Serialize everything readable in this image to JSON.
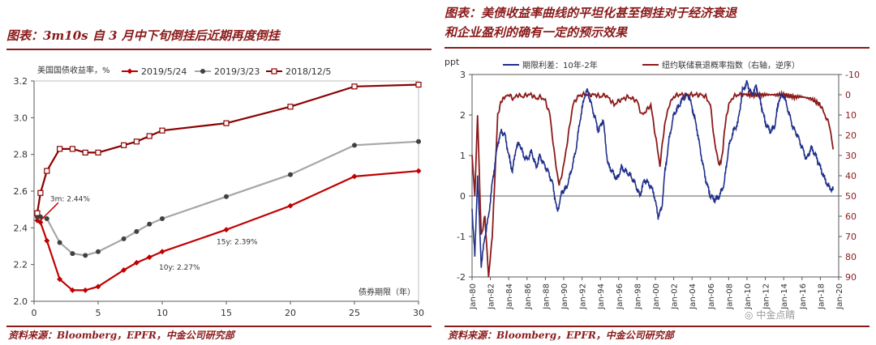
{
  "left": {
    "title": "图表：3m10s 自 3 月中下旬倒挂后近期再度倒挂",
    "source": "资料来源：Bloomberg，EPFR，中金公司研究部"
  },
  "right": {
    "title_line1": "图表：美债收益率曲线的平坦化甚至倒挂对于经济衰退",
    "title_line2": "和企业盈利的确有一定的预示效果",
    "source": "资料来源：Bloomberg，EPFR，中金公司研究部"
  },
  "watermark": "中金点睛",
  "chart_data": [
    {
      "type": "line",
      "ylabel": "美国国债收益率，%",
      "xlabel": "债券期限（年）",
      "ylim": [
        2.0,
        3.2
      ],
      "xlim": [
        0,
        30
      ],
      "yticks": [
        "2.0",
        "2.2",
        "2.4",
        "2.6",
        "2.8",
        "3.0",
        "3.2"
      ],
      "xticks": [
        "0",
        "5",
        "10",
        "15",
        "20",
        "25",
        "30"
      ],
      "x": [
        0.25,
        0.5,
        1,
        2,
        3,
        4,
        5,
        7,
        8,
        9,
        10,
        15,
        20,
        25,
        30
      ],
      "legend_position": "top",
      "series": [
        {
          "name": "2019/5/24",
          "color": "#c00000",
          "marker": "diamond",
          "values": [
            2.44,
            2.43,
            2.33,
            2.12,
            2.06,
            2.06,
            2.08,
            2.17,
            2.21,
            2.24,
            2.27,
            2.39,
            2.52,
            2.68,
            2.71
          ]
        },
        {
          "name": "2019/3/23",
          "color": "#a6a6a6",
          "marker": "circle",
          "values": [
            2.46,
            2.46,
            2.45,
            2.32,
            2.26,
            2.25,
            2.27,
            2.34,
            2.38,
            2.42,
            2.45,
            2.57,
            2.69,
            2.85,
            2.87
          ]
        },
        {
          "name": "2018/12/5",
          "color": "#8b0000",
          "marker": "square",
          "values": [
            2.48,
            2.59,
            2.71,
            2.83,
            2.83,
            2.81,
            2.81,
            2.85,
            2.87,
            2.9,
            2.93,
            2.97,
            3.06,
            3.17,
            3.18
          ]
        }
      ],
      "annotations": [
        {
          "text": "3m: 2.44%",
          "x": 0.25,
          "y": 2.44
        },
        {
          "text": "10y: 2.27%",
          "x": 10,
          "y": 2.27
        },
        {
          "text": "15y: 2.39%",
          "x": 15,
          "y": 2.39
        }
      ]
    },
    {
      "type": "line",
      "ylabel_left": "ppt",
      "xlabel": "",
      "ylim_left": [
        -2,
        3
      ],
      "ylim_right_reversed": [
        90,
        -10
      ],
      "yticks_left": [
        "-2",
        "-1",
        "0",
        "1",
        "2",
        "3"
      ],
      "yticks_right": [
        "-10",
        "0",
        "10",
        "20",
        "30",
        "40",
        "50",
        "60",
        "70",
        "80",
        "90"
      ],
      "xticks": [
        "Jan-80",
        "Jan-82",
        "Jan-84",
        "Jan-86",
        "Jan-88",
        "Jan-90",
        "Jan-92",
        "Jan-94",
        "Jan-96",
        "Jan-98",
        "Jan-00",
        "Jan-02",
        "Jan-04",
        "Jan-06",
        "Jan-08",
        "Jan-10",
        "Jan-12",
        "Jan-14",
        "Jan-16",
        "Jan-18",
        "Jan-20"
      ],
      "legend_position": "top",
      "series": [
        {
          "name": "期限利差：10年-2年",
          "axis": "left",
          "color": "#1f2f8a",
          "x": [
            1980.0,
            1980.3,
            1980.6,
            1981.0,
            1981.4,
            1981.8,
            1982.2,
            1982.5,
            1982.8,
            1983.2,
            1983.6,
            1984.0,
            1984.4,
            1984.8,
            1985.2,
            1985.6,
            1986.0,
            1986.5,
            1987.0,
            1987.4,
            1987.8,
            1988.3,
            1988.8,
            1989.3,
            1989.8,
            1990.3,
            1990.8,
            1991.3,
            1991.8,
            1992.3,
            1992.6,
            1993.2,
            1993.8,
            1994.3,
            1994.8,
            1995.3,
            1995.8,
            1996.3,
            1996.8,
            1997.3,
            1997.8,
            1998.3,
            1998.8,
            1999.3,
            1999.8,
            2000.3,
            2000.7,
            2001.0,
            2001.5,
            2002.0,
            2002.5,
            2003.0,
            2003.6,
            2004.0,
            2004.5,
            2005.0,
            2005.5,
            2006.0,
            2006.5,
            2007.0,
            2007.5,
            2008.0,
            2008.5,
            2009.0,
            2009.5,
            2010.0,
            2010.5,
            2011.0,
            2011.5,
            2012.0,
            2012.5,
            2013.0,
            2013.5,
            2014.0,
            2014.5,
            2015.0,
            2015.5,
            2016.0,
            2016.5,
            2017.0,
            2017.5,
            2018.0,
            2018.5,
            2019.0,
            2019.4
          ],
          "values": [
            -0.3,
            -1.5,
            0.5,
            -1.7,
            -1.0,
            -0.5,
            0.3,
            0.8,
            1.3,
            1.6,
            1.5,
            1.0,
            0.6,
            1.2,
            1.3,
            1.0,
            0.9,
            1.1,
            0.7,
            1.0,
            0.8,
            0.6,
            0.3,
            -0.4,
            0.1,
            0.2,
            0.6,
            1.1,
            1.9,
            2.5,
            2.6,
            2.1,
            1.6,
            1.9,
            0.8,
            0.6,
            0.4,
            0.7,
            0.6,
            0.5,
            0.3,
            0.0,
            0.4,
            0.3,
            0.1,
            -0.5,
            -0.3,
            0.5,
            1.4,
            2.0,
            2.2,
            2.4,
            2.5,
            2.2,
            1.7,
            1.0,
            0.4,
            0.0,
            -0.1,
            0.0,
            0.3,
            1.2,
            1.6,
            1.8,
            2.6,
            2.8,
            2.5,
            2.7,
            2.3,
            1.8,
            1.6,
            1.7,
            2.4,
            2.5,
            2.1,
            1.7,
            1.5,
            1.2,
            0.9,
            1.2,
            1.0,
            0.7,
            0.4,
            0.2,
            0.15
          ]
        },
        {
          "name": "纽约联储衰退概率指数（右轴，逆序）",
          "axis": "right",
          "color": "#8b1a1a",
          "x": [
            1980.0,
            1980.3,
            1980.6,
            1981.0,
            1981.4,
            1981.8,
            1982.2,
            1982.5,
            1982.8,
            1983.2,
            1983.6,
            1984.0,
            1984.5,
            1985.0,
            1985.5,
            1986.0,
            1986.5,
            1987.0,
            1987.5,
            1988.0,
            1988.5,
            1989.0,
            1989.5,
            1990.0,
            1990.5,
            1991.0,
            1991.5,
            1992.0,
            1992.5,
            1993.0,
            1993.5,
            1994.0,
            1994.5,
            1995.0,
            1995.5,
            1996.0,
            1996.5,
            1997.0,
            1997.5,
            1998.0,
            1998.5,
            1999.0,
            1999.5,
            2000.0,
            2000.5,
            2001.0,
            2001.5,
            2002.0,
            2002.5,
            2003.0,
            2003.5,
            2004.0,
            2004.5,
            2005.0,
            2005.5,
            2006.0,
            2006.5,
            2007.0,
            2007.3,
            2007.6,
            2008.0,
            2008.5,
            2009.0,
            2009.5,
            2010.0,
            2011.0,
            2012.0,
            2013.0,
            2014.0,
            2015.0,
            2016.0,
            2017.0,
            2018.0,
            2018.5,
            2019.0,
            2019.4
          ],
          "values": [
            30,
            50,
            10,
            70,
            60,
            90,
            70,
            40,
            10,
            3,
            1,
            0,
            2,
            0,
            1,
            0,
            0,
            2,
            1,
            3,
            10,
            30,
            45,
            35,
            20,
            5,
            1,
            0,
            0,
            0,
            0,
            1,
            0,
            2,
            5,
            3,
            2,
            1,
            2,
            3,
            10,
            8,
            5,
            20,
            35,
            15,
            5,
            1,
            0,
            0,
            0,
            0,
            0,
            0,
            1,
            5,
            25,
            35,
            30,
            15,
            5,
            1,
            0,
            0,
            0,
            0,
            0,
            0,
            0,
            1,
            1,
            2,
            5,
            10,
            15,
            27
          ]
        }
      ]
    }
  ]
}
